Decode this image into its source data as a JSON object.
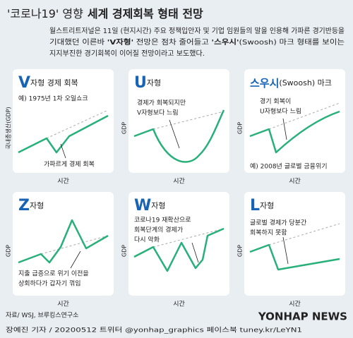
{
  "header": {
    "title_light": "'코로나19' 영향",
    "title_bold": "세계 경제회복 형태 전망",
    "description": [
      [
        "월스트리트저널은 11일 (현지시간) 주요 정책입안자 및 기업 임원들의 말을 인용해 가파른 경기반등을"
      ],
      [
        "기대했던 이른바 ",
        "'V자형'",
        " 전망은 점차 줄어들고 ",
        "'스우시'",
        "(Swoosh) 마크 형태를 보이는"
      ],
      [
        "지지부진한 경기회복이 이어질 전망이라고 보도했다."
      ]
    ]
  },
  "panels": [
    {
      "letter": "V",
      "title": "자형 경제 회복",
      "note": "예) 1975년 1차 오일쇼크",
      "callout": [
        "가파르게 경제 회복"
      ],
      "y_label": "국내총생산(GDP)",
      "x_label": "시간"
    },
    {
      "letter": "U",
      "title": "자형",
      "callout": [
        "경제가 회복되지만",
        "V자형보다 느림"
      ],
      "y_label": "GDP",
      "x_label": "시간"
    },
    {
      "letter": "스우시",
      "title": "(Swoosh) 마크",
      "note": "예) 2008년 글로벌 금융위기",
      "callout": [
        "경기 회복이",
        "U자형보다 느림"
      ],
      "y_label": "GDP",
      "x_label": "시간"
    },
    {
      "letter": "Z",
      "title": "자형",
      "callout": [
        "지출 급증으로 위기 이전을",
        "상회하다가 갑자기 꺾임"
      ],
      "y_label": "GDP",
      "x_label": "시간"
    },
    {
      "letter": "W",
      "title": "자형",
      "callout": [
        "코로나19 재확산으로",
        "회복단계의 경제가",
        "다시 악화"
      ],
      "y_label": "GDP",
      "x_label": "시간"
    },
    {
      "letter": "L",
      "title": "자형",
      "callout": [
        "글로벌 경제가 당분간",
        "회복하지 못함"
      ],
      "y_label": "GDP",
      "x_label": "시간"
    }
  ],
  "source": "자료/ WSJ, 브루킹스연구소",
  "credit": "장예진 기자 / 20200512 트위터 @yonhap_graphics  페이스북 tuney.kr/LeYN1",
  "watermark": "YONHAP NEWS"
}
